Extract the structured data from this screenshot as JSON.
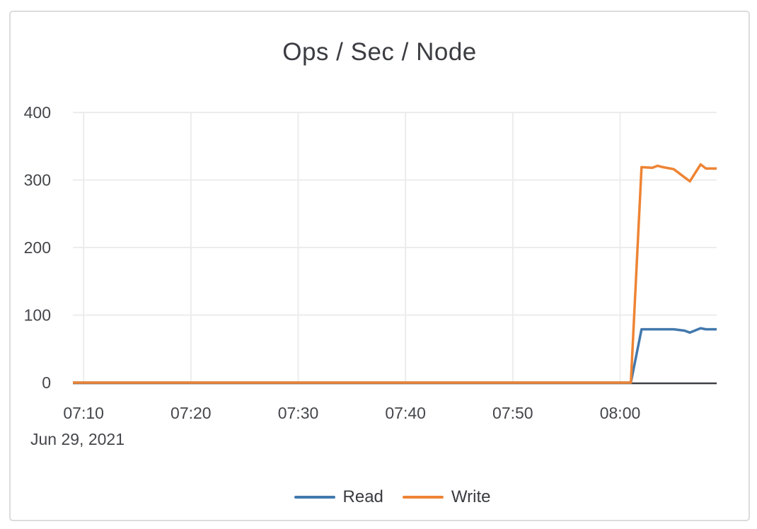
{
  "chart_data": {
    "type": "line",
    "title": "Ops / Sec / Node",
    "x_axis": {
      "kind": "time",
      "date_label": "Jun 29, 2021",
      "tick_labels": [
        "07:10",
        "07:20",
        "07:30",
        "07:40",
        "07:50",
        "08:00"
      ],
      "tick_minutes_after_0700": [
        10,
        20,
        30,
        40,
        50,
        60
      ],
      "domain_minutes_after_0700": [
        9,
        69
      ]
    },
    "y_axis": {
      "tick_labels": [
        "0",
        "100",
        "200",
        "300",
        "400"
      ],
      "tick_values": [
        0,
        100,
        200,
        300,
        400
      ],
      "range": [
        0,
        400
      ]
    },
    "grid": true,
    "legend": {
      "position": "bottom"
    },
    "series": [
      {
        "name": "Read",
        "color": "#4278AD",
        "points_minutes_value": [
          [
            9,
            0
          ],
          [
            20,
            0
          ],
          [
            30,
            0
          ],
          [
            40,
            0
          ],
          [
            50,
            0
          ],
          [
            60,
            0
          ],
          [
            61,
            0
          ],
          [
            62,
            79
          ],
          [
            63,
            79
          ],
          [
            64,
            79
          ],
          [
            65,
            79
          ],
          [
            66,
            77
          ],
          [
            66.5,
            74
          ],
          [
            67.5,
            80.5
          ],
          [
            68,
            79
          ],
          [
            69,
            79
          ]
        ]
      },
      {
        "name": "Write",
        "color": "#EE8434",
        "points_minutes_value": [
          [
            9,
            0
          ],
          [
            20,
            0
          ],
          [
            30,
            0
          ],
          [
            40,
            0
          ],
          [
            50,
            0
          ],
          [
            60,
            0
          ],
          [
            61,
            0
          ],
          [
            62,
            319
          ],
          [
            63,
            318
          ],
          [
            63.5,
            321
          ],
          [
            64,
            319
          ],
          [
            65,
            316
          ],
          [
            66,
            304
          ],
          [
            66.5,
            298
          ],
          [
            67.5,
            323
          ],
          [
            68,
            317
          ],
          [
            69,
            317
          ]
        ]
      }
    ],
    "colors": {
      "grid": "#ececec",
      "axis_line": "#3e4046",
      "tick_text": "#45464b",
      "title_text": "#3c3d42",
      "card_border": "#dcdcdc"
    }
  }
}
